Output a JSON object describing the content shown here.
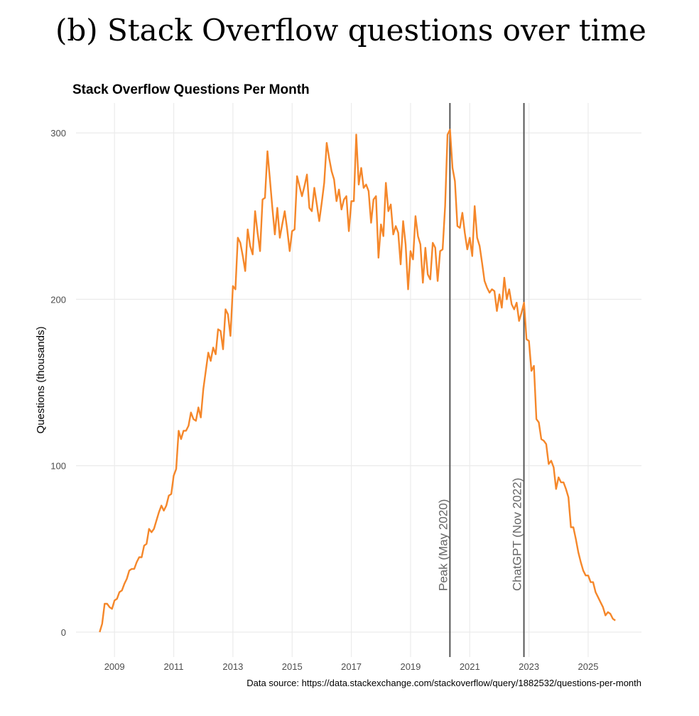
{
  "figure_title": "(b) Stack Overflow questions over time",
  "chart_data": {
    "type": "line",
    "title": "Stack Overflow Questions Per Month",
    "xlabel": "",
    "ylabel": "Questions (thousands)",
    "caption": "Data source: https://data.stackexchange.com/stackoverflow/query/1882532/questions-per-month",
    "start_month": "2008-07",
    "end_month": "2025-12",
    "frequency": "monthly",
    "xlim": [
      2007.7,
      2026.8
    ],
    "ylim": [
      -15,
      318
    ],
    "x_ticks": [
      2009,
      2011,
      2013,
      2015,
      2017,
      2019,
      2021,
      2023,
      2025
    ],
    "y_ticks": [
      0,
      100,
      200,
      300
    ],
    "grid": true,
    "line_color": "#f5872a",
    "values": [
      0,
      5,
      17,
      17,
      15,
      14,
      19,
      20,
      24,
      25,
      29,
      32,
      37,
      38,
      38,
      42,
      45,
      45,
      52,
      53,
      62,
      60,
      62,
      67,
      72,
      76,
      73,
      76,
      82,
      83,
      94,
      98,
      121,
      116,
      121,
      121,
      124,
      132,
      128,
      127,
      135,
      129,
      146,
      157,
      168,
      163,
      171,
      167,
      182,
      181,
      170,
      194,
      191,
      178,
      208,
      206,
      237,
      234,
      226,
      217,
      242,
      232,
      227,
      253,
      240,
      229,
      260,
      261,
      289,
      272,
      255,
      239,
      255,
      237,
      245,
      253,
      242,
      229,
      241,
      242,
      274,
      268,
      262,
      268,
      275,
      255,
      253,
      267,
      257,
      247,
      258,
      270,
      294,
      285,
      277,
      272,
      259,
      266,
      254,
      260,
      262,
      241,
      259,
      259,
      299,
      269,
      279,
      267,
      269,
      265,
      246,
      260,
      262,
      225,
      245,
      238,
      270,
      253,
      257,
      239,
      244,
      240,
      221,
      247,
      233,
      206,
      229,
      224,
      250,
      238,
      233,
      210,
      231,
      215,
      212,
      234,
      231,
      211,
      229,
      230,
      256,
      299,
      302,
      279,
      271,
      244,
      243,
      252,
      240,
      230,
      237,
      226,
      256,
      237,
      232,
      222,
      211,
      207,
      204,
      206,
      205,
      193,
      203,
      195,
      213,
      200,
      206,
      197,
      194,
      198,
      187,
      192,
      198,
      176,
      175,
      157,
      160,
      128,
      126,
      116,
      115,
      113,
      101,
      103,
      99,
      86,
      93,
      90,
      90,
      86,
      81,
      63,
      63,
      56,
      48,
      42,
      37,
      34,
      34,
      30,
      30,
      24,
      21,
      18,
      15,
      10,
      12,
      11,
      8,
      7
    ],
    "annotations": [
      {
        "label": "Peak (May 2020)",
        "x": 2020.33,
        "color": "#555555"
      },
      {
        "label": "ChatGPT (Nov 2022)",
        "x": 2022.83,
        "color": "#555555"
      }
    ]
  }
}
